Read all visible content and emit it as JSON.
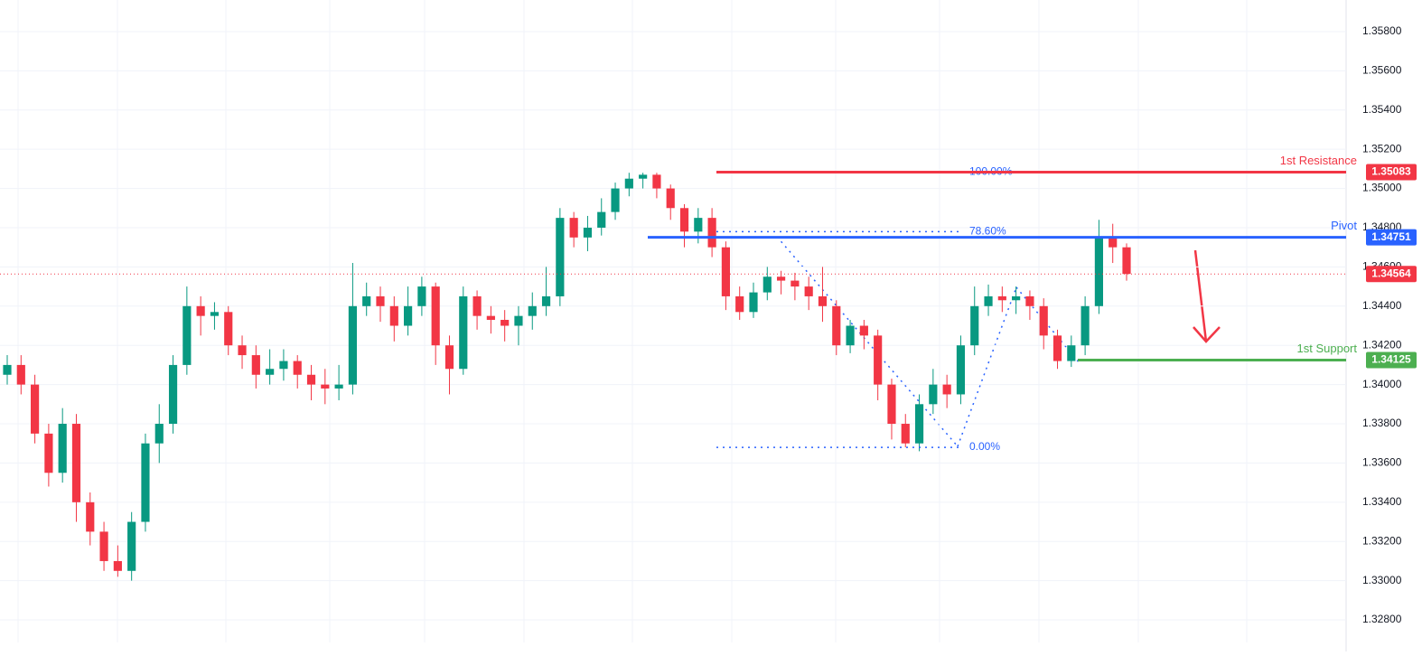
{
  "chart_data": {
    "type": "candlestick",
    "up_color": "#089981",
    "down_color": "#f23645",
    "open": [
      1.3405,
      1.341,
      1.34,
      1.3375,
      1.3355,
      1.338,
      1.334,
      1.3325,
      1.331,
      1.3305,
      1.333,
      1.337,
      1.338,
      1.341,
      1.344,
      1.3435,
      1.3437,
      1.342,
      1.3415,
      1.3405,
      1.3408,
      1.3412,
      1.3405,
      1.34,
      1.3398,
      1.34,
      1.344,
      1.3445,
      1.344,
      1.343,
      1.344,
      1.345,
      1.342,
      1.3408,
      1.3445,
      1.3435,
      1.3433,
      1.343,
      1.3435,
      1.344,
      1.3445,
      1.3485,
      1.3475,
      1.348,
      1.3488,
      1.35,
      1.3505,
      1.3507,
      1.35,
      1.349,
      1.3478,
      1.3485,
      1.347,
      1.3445,
      1.3437,
      1.3447,
      1.3455,
      1.3453,
      1.345,
      1.3445,
      1.344,
      1.342,
      1.343,
      1.3425,
      1.34,
      1.338,
      1.337,
      1.339,
      1.34,
      1.3395,
      1.342,
      1.344,
      1.3445,
      1.3443,
      1.3445,
      1.344,
      1.3425,
      1.3412,
      1.342,
      1.344,
      1.3475,
      1.347
    ],
    "high": [
      1.3415,
      1.3415,
      1.3405,
      1.338,
      1.3388,
      1.3385,
      1.3345,
      1.333,
      1.3318,
      1.3335,
      1.3375,
      1.339,
      1.3415,
      1.345,
      1.3445,
      1.3442,
      1.344,
      1.3425,
      1.342,
      1.3418,
      1.3418,
      1.3415,
      1.341,
      1.3408,
      1.341,
      1.3462,
      1.3452,
      1.345,
      1.3445,
      1.345,
      1.3455,
      1.3452,
      1.3425,
      1.345,
      1.3448,
      1.344,
      1.3438,
      1.344,
      1.3447,
      1.346,
      1.349,
      1.3488,
      1.3486,
      1.3495,
      1.3503,
      1.3508,
      1.3508,
      1.3508,
      1.3502,
      1.3492,
      1.349,
      1.349,
      1.3473,
      1.345,
      1.3452,
      1.346,
      1.3458,
      1.3457,
      1.3455,
      1.346,
      1.3443,
      1.3433,
      1.3433,
      1.3428,
      1.3403,
      1.3385,
      1.3395,
      1.3408,
      1.3405,
      1.3425,
      1.345,
      1.3451,
      1.345,
      1.345,
      1.3448,
      1.3444,
      1.3428,
      1.3425,
      1.3445,
      1.3484,
      1.3482,
      1.3472
    ],
    "low": [
      1.34,
      1.3395,
      1.337,
      1.3348,
      1.335,
      1.333,
      1.3318,
      1.3305,
      1.3302,
      1.33,
      1.3325,
      1.336,
      1.3375,
      1.3405,
      1.3425,
      1.3428,
      1.3415,
      1.3408,
      1.3398,
      1.34,
      1.3402,
      1.3398,
      1.3392,
      1.339,
      1.3392,
      1.3395,
      1.3435,
      1.3432,
      1.3422,
      1.3425,
      1.3435,
      1.341,
      1.3395,
      1.3405,
      1.3428,
      1.3426,
      1.3422,
      1.342,
      1.3428,
      1.3435,
      1.344,
      1.347,
      1.3468,
      1.3476,
      1.3484,
      1.3496,
      1.35,
      1.3495,
      1.3484,
      1.347,
      1.3472,
      1.3465,
      1.3438,
      1.3433,
      1.3434,
      1.3443,
      1.3446,
      1.3443,
      1.3438,
      1.3432,
      1.3415,
      1.3416,
      1.3418,
      1.3392,
      1.3372,
      1.3368,
      1.3366,
      1.3385,
      1.3388,
      1.339,
      1.3415,
      1.3435,
      1.3437,
      1.3436,
      1.3433,
      1.3418,
      1.3408,
      1.3409,
      1.3415,
      1.3436,
      1.3462,
      1.3453
    ],
    "close": [
      1.341,
      1.34,
      1.3375,
      1.3355,
      1.338,
      1.334,
      1.3325,
      1.331,
      1.3305,
      1.333,
      1.337,
      1.338,
      1.341,
      1.344,
      1.3435,
      1.3437,
      1.342,
      1.3415,
      1.3405,
      1.3408,
      1.3412,
      1.3405,
      1.34,
      1.3398,
      1.34,
      1.344,
      1.3445,
      1.344,
      1.343,
      1.344,
      1.345,
      1.342,
      1.3408,
      1.3445,
      1.3435,
      1.3433,
      1.343,
      1.3435,
      1.344,
      1.3445,
      1.3485,
      1.3475,
      1.348,
      1.3488,
      1.35,
      1.3505,
      1.3507,
      1.35,
      1.349,
      1.3478,
      1.3485,
      1.347,
      1.3445,
      1.3437,
      1.3447,
      1.3455,
      1.3453,
      1.345,
      1.3445,
      1.344,
      1.342,
      1.343,
      1.3425,
      1.34,
      1.338,
      1.337,
      1.339,
      1.34,
      1.3395,
      1.342,
      1.344,
      1.3445,
      1.3443,
      1.3445,
      1.344,
      1.3425,
      1.3412,
      1.342,
      1.344,
      1.3475,
      1.347,
      1.34564
    ],
    "ylim": [
      1.32639,
      1.35961
    ],
    "yticks": [
      {
        "value": 1.358,
        "label": "1.35800"
      },
      {
        "value": 1.356,
        "label": "1.35600"
      },
      {
        "value": 1.354,
        "label": "1.35400"
      },
      {
        "value": 1.352,
        "label": "1.35200"
      },
      {
        "value": 1.35,
        "label": "1.35000"
      },
      {
        "value": 1.348,
        "label": "1.34800"
      },
      {
        "value": 1.346,
        "label": "1.34600"
      },
      {
        "value": 1.344,
        "label": "1.34400"
      },
      {
        "value": 1.342,
        "label": "1.34200"
      },
      {
        "value": 1.34,
        "label": "1.34000"
      },
      {
        "value": 1.338,
        "label": "1.33800"
      },
      {
        "value": 1.336,
        "label": "1.33600"
      },
      {
        "value": 1.334,
        "label": "1.33400"
      },
      {
        "value": 1.332,
        "label": "1.33200"
      },
      {
        "value": 1.33,
        "label": "1.33000"
      },
      {
        "value": 1.328,
        "label": "1.32800"
      }
    ],
    "grid": true,
    "levels": [
      {
        "name": "1st Resistance",
        "value": 1.35083,
        "label": "1.35083",
        "color": "#f23645"
      },
      {
        "name": "Pivot",
        "value": 1.34751,
        "label": "1.34751",
        "color": "#2962ff"
      },
      {
        "name": "1st Support",
        "value": 1.34125,
        "label": "1.34125",
        "color": "#4caf50"
      }
    ],
    "current_price": {
      "value": 1.34564,
      "label": "1.34564",
      "color": "#f23645"
    },
    "fib_levels": [
      {
        "value": 1.35083,
        "label": "100.00%"
      },
      {
        "value": 1.3478,
        "label": "78.60%"
      },
      {
        "value": 1.3368,
        "label": "0.00%"
      }
    ],
    "fib_color": "#2962ff"
  }
}
